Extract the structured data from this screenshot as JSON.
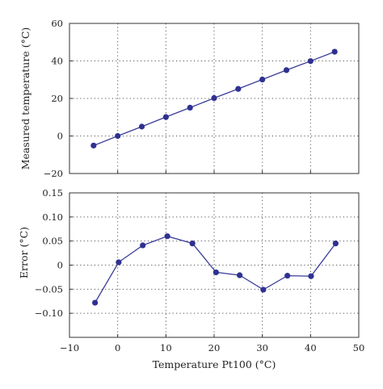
{
  "chart_data": [
    {
      "type": "line",
      "title": "",
      "xlabel": "",
      "ylabel": "Measured temperature (°C)",
      "xlim": [
        -10,
        50
      ],
      "ylim": [
        -20,
        60
      ],
      "xticks": [
        -10,
        0,
        10,
        20,
        30,
        40,
        50
      ],
      "yticks": [
        -20,
        0,
        20,
        40,
        60
      ],
      "ytick_labels": [
        "−20",
        "0",
        "20",
        "40",
        "60"
      ],
      "show_x_tick_labels": false,
      "grid": true,
      "series": [
        {
          "color": "#2f3190",
          "x": [
            -5,
            0,
            5,
            10,
            15,
            20,
            25,
            30,
            35,
            40,
            45
          ],
          "y": [
            -5.1,
            0,
            5.0,
            10.1,
            15.1,
            20.2,
            25.1,
            30.1,
            35.1,
            39.9,
            44.9
          ]
        }
      ]
    },
    {
      "type": "line",
      "title": "",
      "xlabel": "Temperature Pt100 (°C)",
      "ylabel": "Error (°C)",
      "xlim": [
        -10,
        50
      ],
      "ylim": [
        -0.15,
        0.15
      ],
      "xticks": [
        -10,
        0,
        10,
        20,
        30,
        40,
        50
      ],
      "xtick_labels": [
        "−10",
        "0",
        "10",
        "20",
        "30",
        "40",
        "50"
      ],
      "yticks": [
        -0.1,
        -0.05,
        0,
        0.05,
        0.1,
        0.15
      ],
      "ytick_labels": [
        "−0.10",
        "−0.05",
        "0",
        "0.05",
        "0.10",
        "0.15"
      ],
      "show_x_tick_labels": true,
      "grid": true,
      "series": [
        {
          "color": "#2f3190",
          "x": [
            -4.7,
            0.2,
            5.2,
            10.3,
            15.5,
            20.4,
            25.3,
            30.2,
            35.2,
            40.1,
            45.2
          ],
          "y": [
            -0.078,
            0.006,
            0.041,
            0.06,
            0.045,
            -0.015,
            -0.021,
            -0.051,
            -0.022,
            -0.023,
            0.045
          ]
        }
      ]
    }
  ]
}
